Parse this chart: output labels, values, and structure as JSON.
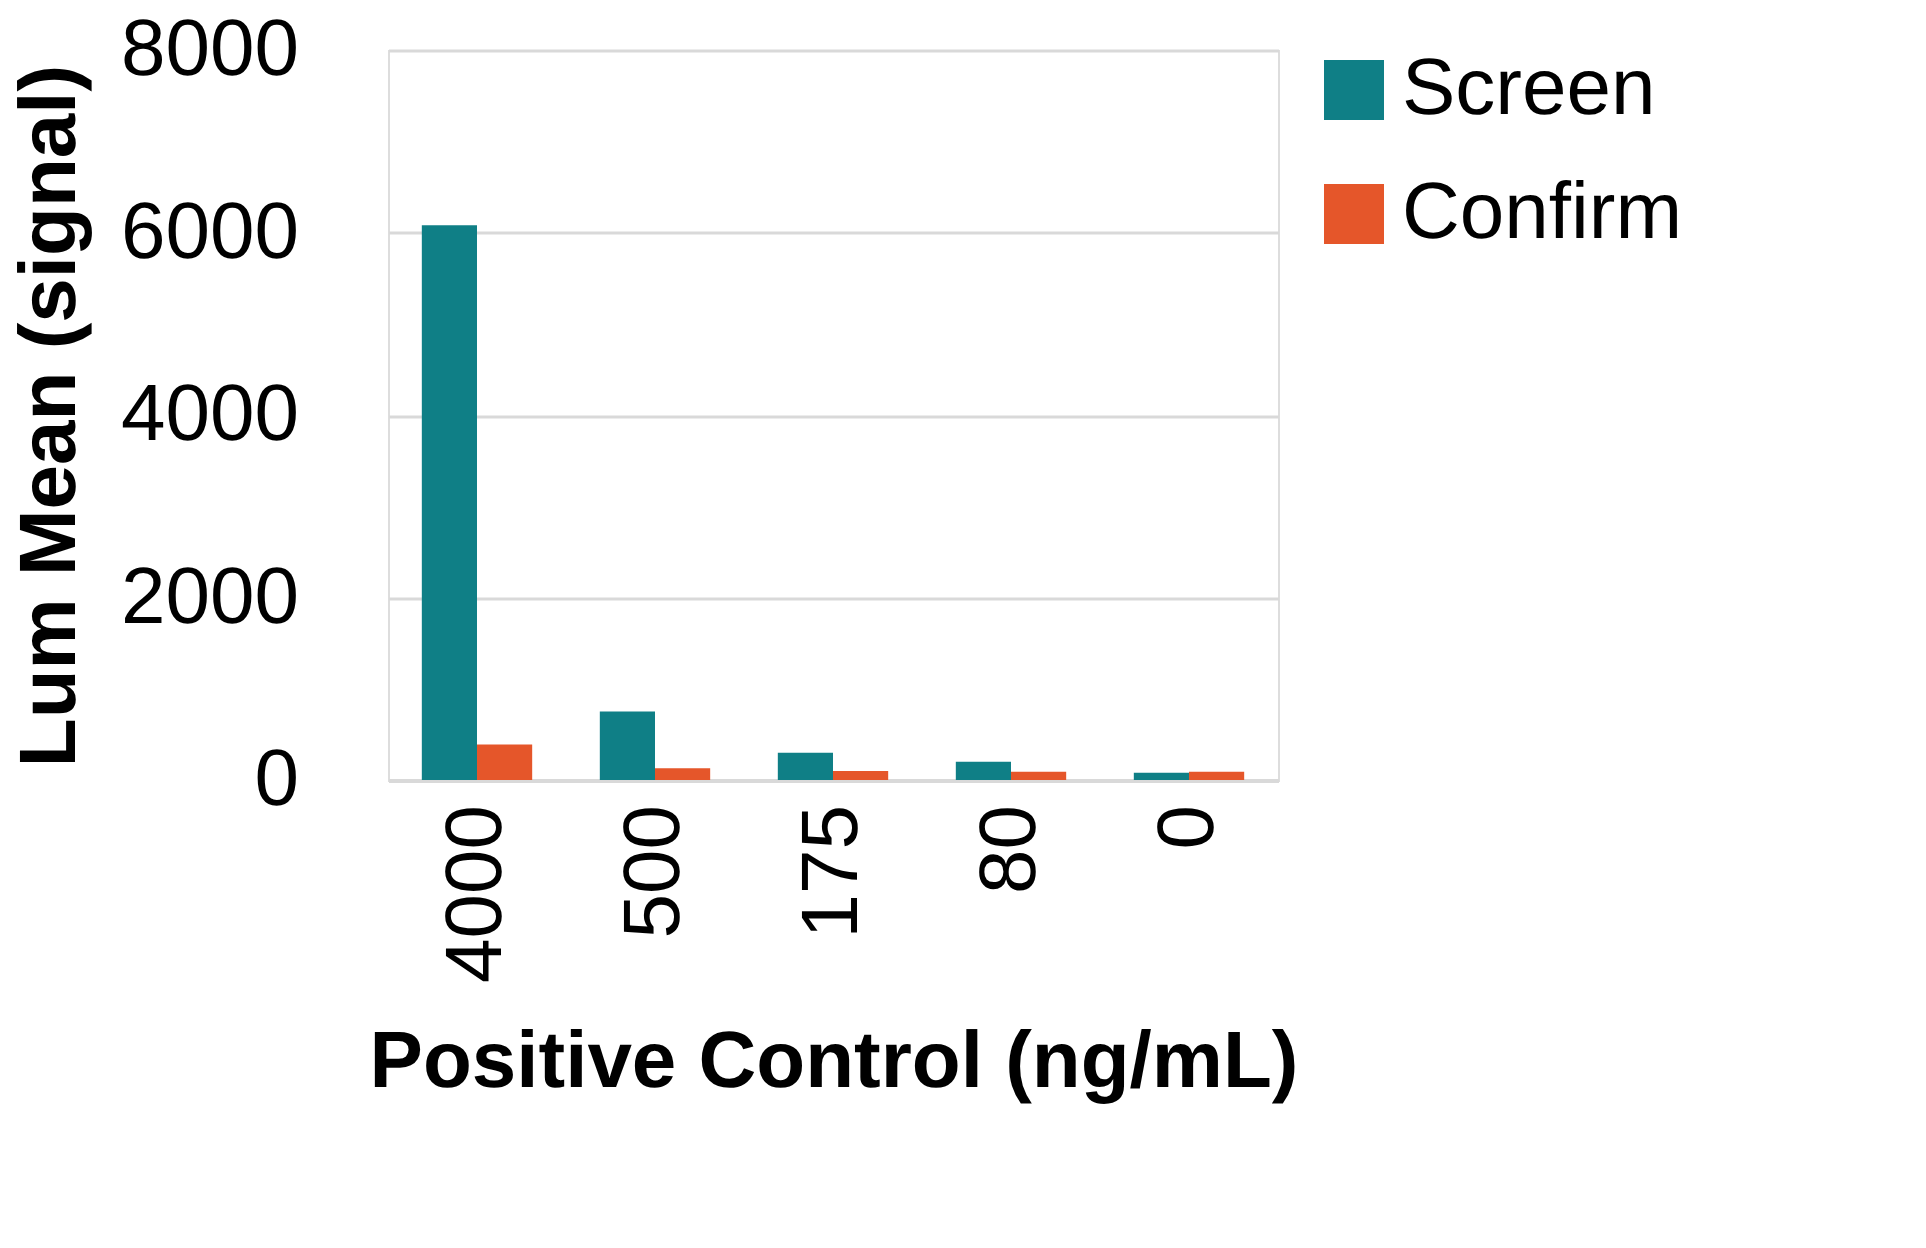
{
  "chart_data": {
    "type": "bar",
    "xlabel": "Positive Control (ng/mL)",
    "ylabel": "Lum Mean (signal)",
    "categories": [
      "4000",
      "500",
      "175",
      "80",
      "0"
    ],
    "series": [
      {
        "name": "Screen",
        "color": "#0f7f86",
        "values": [
          6080,
          750,
          300,
          200,
          80
        ]
      },
      {
        "name": "Confirm",
        "color": "#e5562a",
        "values": [
          390,
          130,
          100,
          90,
          90
        ]
      }
    ],
    "ylim": [
      0,
      8000
    ],
    "yticks": [
      0,
      2000,
      4000,
      6000,
      8000
    ],
    "grid": "y",
    "legend": "right"
  }
}
